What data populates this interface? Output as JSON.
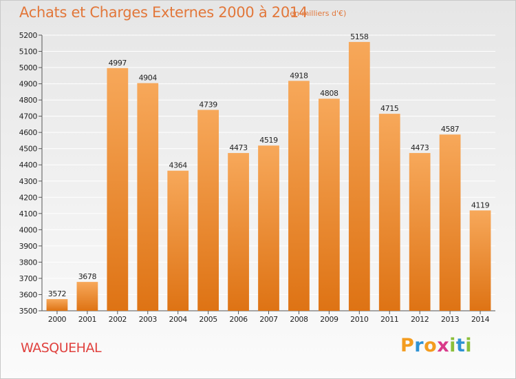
{
  "header": {
    "title": "Achats et Charges Externes 2000 à 2014",
    "subtitle": "(en milliers d'€)"
  },
  "footer": {
    "commune": "WASQUEHAL",
    "logo_text": "Proxiti",
    "logo_letters": [
      {
        "ch": "P",
        "color": "#f39c1f"
      },
      {
        "ch": "r",
        "color": "#2e92d4"
      },
      {
        "ch": "o",
        "color": "#f39c1f"
      },
      {
        "ch": "x",
        "color": "#d93a8a"
      },
      {
        "ch": "i",
        "color": "#8bbf3a"
      },
      {
        "ch": "t",
        "color": "#2e92d4"
      },
      {
        "ch": "i",
        "color": "#8bbf3a"
      }
    ]
  },
  "colors": {
    "bar_top": "#f7a85a",
    "bar_bottom": "#de7314",
    "title": "#e2773a",
    "commune": "#e0413e",
    "grid": "#ffffff",
    "axis_text": "#222222"
  },
  "chart_data": {
    "type": "bar",
    "categories": [
      "2000",
      "2001",
      "2002",
      "2003",
      "2004",
      "2005",
      "2006",
      "2007",
      "2008",
      "2009",
      "2010",
      "2011",
      "2012",
      "2013",
      "2014"
    ],
    "values": [
      3572,
      3678,
      4997,
      4904,
      4364,
      4739,
      4473,
      4519,
      4918,
      4808,
      5158,
      4715,
      4473,
      4587,
      4119
    ],
    "ylim": [
      3500,
      5200
    ],
    "yticks": [
      3500,
      3600,
      3700,
      3800,
      3900,
      4000,
      4100,
      4200,
      4300,
      4400,
      4500,
      4600,
      4700,
      4800,
      4900,
      5000,
      5100,
      5200
    ],
    "grid": true,
    "data_labels": true
  }
}
